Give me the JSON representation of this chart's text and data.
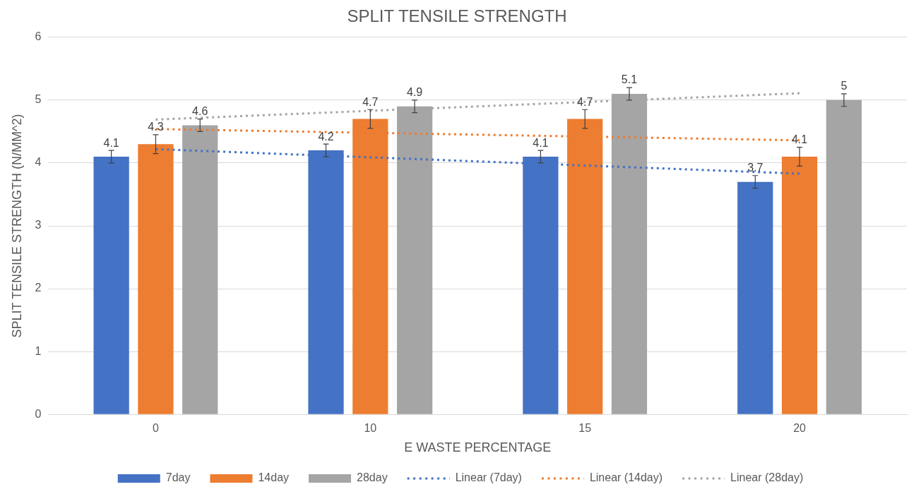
{
  "chart_data": {
    "type": "bar",
    "title": "SPLIT TENSILE STRENGTH",
    "xlabel": "E WASTE PERCENTAGE",
    "ylabel": "SPLIT TENSILE STRENGTH (N/MM^2)",
    "categories": [
      "0",
      "10",
      "15",
      "20"
    ],
    "series": [
      {
        "name": "7day",
        "color": "#4472c4",
        "values": [
          4.1,
          4.2,
          4.1,
          3.7
        ],
        "errors": [
          0.1,
          0.1,
          0.1,
          0.1
        ],
        "value_labels": [
          "4.1",
          "4.2",
          "4.1",
          "3.7"
        ]
      },
      {
        "name": "14day",
        "color": "#ed7d31",
        "values": [
          4.3,
          4.7,
          4.7,
          4.1
        ],
        "errors": [
          0.15,
          0.15,
          0.15,
          0.15
        ],
        "value_labels": [
          "4.3",
          "4.7",
          "4.7",
          "4.1"
        ]
      },
      {
        "name": "28day",
        "color": "#a5a5a5",
        "values": [
          4.6,
          4.9,
          5.1,
          5
        ],
        "errors": [
          0.1,
          0.1,
          0.1,
          0.1
        ],
        "value_labels": [
          "4.6",
          "4.9",
          "5.1",
          "5"
        ]
      },
      {
        "name": "Linear (7day)",
        "type": "line",
        "line_style": "dotted",
        "color": "#4472c4",
        "x": [
          "0",
          "20"
        ],
        "values": [
          4.22,
          3.83
        ]
      },
      {
        "name": "Linear (14day)",
        "type": "line",
        "line_style": "dotted",
        "color": "#ed7d31",
        "x": [
          "0",
          "20"
        ],
        "values": [
          4.54,
          4.36
        ]
      },
      {
        "name": "Linear (28day)",
        "type": "line",
        "line_style": "dotted",
        "color": "#a5a5a5",
        "x": [
          "0",
          "20"
        ],
        "values": [
          4.69,
          5.11
        ]
      }
    ],
    "ylim": [
      0,
      6
    ],
    "yticks": [
      0,
      1,
      2,
      3,
      4,
      5,
      6
    ],
    "grid": "y",
    "legend": "bottom",
    "marker": "none"
  }
}
